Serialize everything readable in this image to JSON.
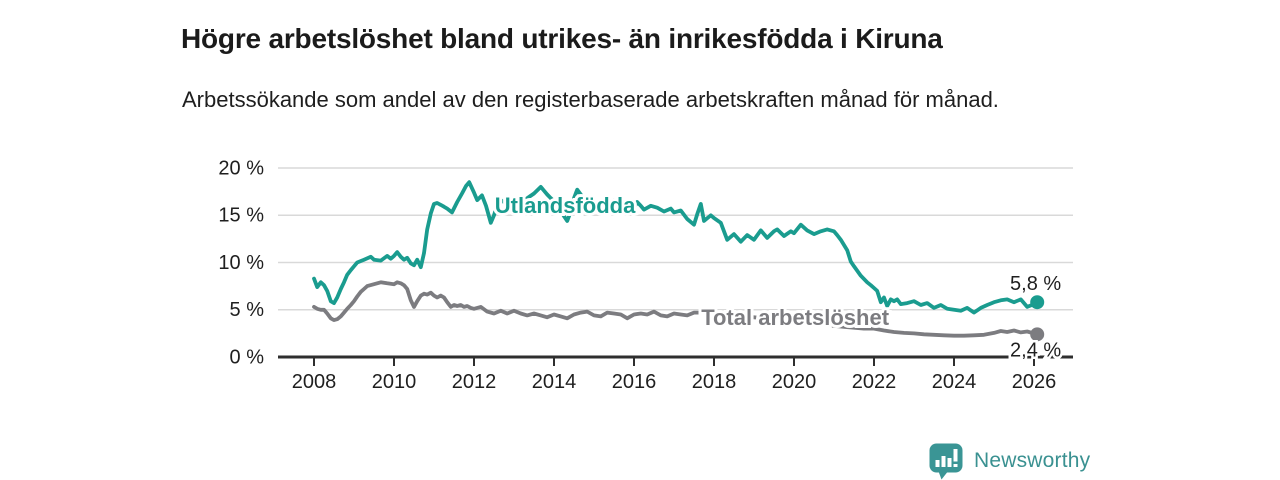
{
  "header": {
    "title": "Högre arbetslöshet bland utrikes- än inrikesfödda i Kiruna",
    "subtitle": "Arbetssökande som andel av den registerbaserade arbetskraften månad för månad."
  },
  "colors": {
    "accent_teal": "#1a9c8f",
    "line_gray": "#7c7c80",
    "axis": "#2e2e2e",
    "grid": "#d9d9d9",
    "tick_text": "#1f1f1f",
    "halo": "#ffffff",
    "logo_teal": "#3a9595",
    "logo_text": "#3a9191"
  },
  "chart_data": {
    "type": "line",
    "title": "Högre arbetslöshet bland utrikes- än inrikesfödda i Kiruna",
    "xlabel": "",
    "ylabel": "",
    "xlim": [
      2007.1,
      2026.975
    ],
    "ylim": [
      0,
      20
    ],
    "grid": true,
    "legend_position": "inline-labels",
    "x_ticks": [
      {
        "v": 2008,
        "label": "2008"
      },
      {
        "v": 2010,
        "label": "2010"
      },
      {
        "v": 2012,
        "label": "2012"
      },
      {
        "v": 2014,
        "label": "2014"
      },
      {
        "v": 2016,
        "label": "2016"
      },
      {
        "v": 2018,
        "label": "2018"
      },
      {
        "v": 2020,
        "label": "2020"
      },
      {
        "v": 2022,
        "label": "2022"
      },
      {
        "v": 2024,
        "label": "2024"
      },
      {
        "v": 2026,
        "label": "2026"
      }
    ],
    "y_ticks": [
      {
        "v": 0,
        "label": "0 %"
      },
      {
        "v": 5,
        "label": "5 %"
      },
      {
        "v": 10,
        "label": "10 %"
      },
      {
        "v": 15,
        "label": "15 %"
      },
      {
        "v": 20,
        "label": "20 %"
      }
    ],
    "series": [
      {
        "name": "Utlandsfödda",
        "slug": "utlandsfodda",
        "color": "#1a9c8f",
        "end_value_label": "5,8 %",
        "end_label_position": "above",
        "name_anchor": {
          "x": 2012.52,
          "y": 16.0
        },
        "points": [
          [
            2008.0,
            8.3
          ],
          [
            2008.08,
            7.4
          ],
          [
            2008.17,
            7.9
          ],
          [
            2008.25,
            7.6
          ],
          [
            2008.33,
            7.0
          ],
          [
            2008.42,
            5.9
          ],
          [
            2008.5,
            5.7
          ],
          [
            2008.58,
            6.3
          ],
          [
            2008.67,
            7.2
          ],
          [
            2008.75,
            7.9
          ],
          [
            2008.83,
            8.7
          ],
          [
            2008.92,
            9.2
          ],
          [
            2009.0,
            9.6
          ],
          [
            2009.08,
            10.0
          ],
          [
            2009.25,
            10.3
          ],
          [
            2009.42,
            10.6
          ],
          [
            2009.5,
            10.3
          ],
          [
            2009.67,
            10.2
          ],
          [
            2009.83,
            10.7
          ],
          [
            2009.92,
            10.4
          ],
          [
            2010.0,
            10.7
          ],
          [
            2010.08,
            11.1
          ],
          [
            2010.17,
            10.6
          ],
          [
            2010.25,
            10.3
          ],
          [
            2010.33,
            10.5
          ],
          [
            2010.42,
            9.9
          ],
          [
            2010.5,
            9.7
          ],
          [
            2010.58,
            10.3
          ],
          [
            2010.67,
            9.5
          ],
          [
            2010.75,
            11.0
          ],
          [
            2010.83,
            13.5
          ],
          [
            2010.92,
            15.2
          ],
          [
            2011.0,
            16.2
          ],
          [
            2011.08,
            16.3
          ],
          [
            2011.17,
            16.1
          ],
          [
            2011.25,
            15.9
          ],
          [
            2011.33,
            15.7
          ],
          [
            2011.45,
            15.3
          ],
          [
            2011.58,
            16.4
          ],
          [
            2011.7,
            17.3
          ],
          [
            2011.8,
            18.1
          ],
          [
            2011.88,
            18.5
          ],
          [
            2012.0,
            17.4
          ],
          [
            2012.08,
            16.6
          ],
          [
            2012.2,
            17.1
          ],
          [
            2012.3,
            16.0
          ],
          [
            2012.42,
            14.2
          ],
          [
            2012.5,
            15.0
          ],
          [
            2012.58,
            16.1
          ],
          [
            2012.67,
            16.6
          ],
          [
            2012.75,
            16.4
          ],
          [
            2012.83,
            16.8
          ],
          [
            2012.92,
            16.5
          ],
          [
            2013.0,
            16.7
          ],
          [
            2013.17,
            16.4
          ],
          [
            2013.33,
            16.8
          ],
          [
            2013.5,
            17.3
          ],
          [
            2013.67,
            18.0
          ],
          [
            2013.75,
            17.6
          ],
          [
            2013.83,
            17.2
          ],
          [
            2013.92,
            16.8
          ],
          [
            2014.0,
            16.5
          ],
          [
            2014.08,
            16.1
          ],
          [
            2014.17,
            15.5
          ],
          [
            2014.25,
            14.9
          ],
          [
            2014.33,
            14.4
          ],
          [
            2014.42,
            15.4
          ],
          [
            2014.5,
            16.8
          ],
          [
            2014.58,
            17.7
          ],
          [
            2014.67,
            17.2
          ],
          [
            2014.75,
            16.6
          ],
          [
            2014.83,
            16.2
          ],
          [
            2014.92,
            16.5
          ],
          [
            2015.0,
            16.1
          ],
          [
            2015.17,
            16.4
          ],
          [
            2015.33,
            16.0
          ],
          [
            2015.5,
            16.6
          ],
          [
            2015.67,
            16.2
          ],
          [
            2015.83,
            15.7
          ],
          [
            2015.92,
            16.1
          ],
          [
            2016.0,
            15.8
          ],
          [
            2016.08,
            16.4
          ],
          [
            2016.17,
            16.0
          ],
          [
            2016.25,
            15.6
          ],
          [
            2016.42,
            16.0
          ],
          [
            2016.58,
            15.8
          ],
          [
            2016.75,
            15.4
          ],
          [
            2016.92,
            15.7
          ],
          [
            2017.0,
            15.3
          ],
          [
            2017.17,
            15.5
          ],
          [
            2017.33,
            14.6
          ],
          [
            2017.5,
            14.0
          ],
          [
            2017.58,
            15.1
          ],
          [
            2017.67,
            16.2
          ],
          [
            2017.75,
            14.4
          ],
          [
            2017.92,
            15.0
          ],
          [
            2018.0,
            14.7
          ],
          [
            2018.17,
            14.2
          ],
          [
            2018.33,
            12.4
          ],
          [
            2018.5,
            13.0
          ],
          [
            2018.67,
            12.2
          ],
          [
            2018.83,
            12.9
          ],
          [
            2019.0,
            12.4
          ],
          [
            2019.17,
            13.4
          ],
          [
            2019.33,
            12.6
          ],
          [
            2019.5,
            13.3
          ],
          [
            2019.58,
            13.5
          ],
          [
            2019.75,
            12.8
          ],
          [
            2019.92,
            13.3
          ],
          [
            2020.0,
            13.1
          ],
          [
            2020.17,
            14.0
          ],
          [
            2020.33,
            13.4
          ],
          [
            2020.5,
            13.0
          ],
          [
            2020.67,
            13.3
          ],
          [
            2020.83,
            13.5
          ],
          [
            2021.0,
            13.3
          ],
          [
            2021.08,
            12.9
          ],
          [
            2021.17,
            12.4
          ],
          [
            2021.33,
            11.3
          ],
          [
            2021.42,
            10.1
          ],
          [
            2021.5,
            9.6
          ],
          [
            2021.67,
            8.6
          ],
          [
            2021.83,
            7.9
          ],
          [
            2021.92,
            7.6
          ],
          [
            2022.0,
            7.3
          ],
          [
            2022.08,
            7.0
          ],
          [
            2022.17,
            5.8
          ],
          [
            2022.25,
            6.3
          ],
          [
            2022.33,
            5.4
          ],
          [
            2022.42,
            6.1
          ],
          [
            2022.5,
            5.9
          ],
          [
            2022.58,
            6.1
          ],
          [
            2022.67,
            5.6
          ],
          [
            2022.83,
            5.7
          ],
          [
            2023.0,
            5.9
          ],
          [
            2023.17,
            5.5
          ],
          [
            2023.33,
            5.7
          ],
          [
            2023.5,
            5.2
          ],
          [
            2023.67,
            5.5
          ],
          [
            2023.83,
            5.1
          ],
          [
            2024.0,
            5.0
          ],
          [
            2024.17,
            4.9
          ],
          [
            2024.33,
            5.2
          ],
          [
            2024.5,
            4.7
          ],
          [
            2024.67,
            5.2
          ],
          [
            2024.83,
            5.5
          ],
          [
            2025.0,
            5.8
          ],
          [
            2025.17,
            6.0
          ],
          [
            2025.33,
            6.1
          ],
          [
            2025.5,
            5.8
          ],
          [
            2025.67,
            6.1
          ],
          [
            2025.83,
            5.3
          ],
          [
            2026.0,
            5.6
          ],
          [
            2026.08,
            5.8
          ]
        ]
      },
      {
        "name": "Total arbetslöshet",
        "slug": "total-arbetsloshet",
        "color": "#7c7c80",
        "end_value_label": "2,4 %",
        "end_label_position": "below",
        "name_anchor": {
          "x": 2017.68,
          "y": 4.15
        },
        "points": [
          [
            2008.0,
            5.3
          ],
          [
            2008.08,
            5.1
          ],
          [
            2008.17,
            5.0
          ],
          [
            2008.25,
            5.0
          ],
          [
            2008.33,
            4.6
          ],
          [
            2008.42,
            4.1
          ],
          [
            2008.5,
            3.9
          ],
          [
            2008.58,
            4.0
          ],
          [
            2008.67,
            4.3
          ],
          [
            2008.75,
            4.7
          ],
          [
            2008.83,
            5.1
          ],
          [
            2008.92,
            5.5
          ],
          [
            2009.0,
            5.9
          ],
          [
            2009.08,
            6.4
          ],
          [
            2009.17,
            6.9
          ],
          [
            2009.25,
            7.2
          ],
          [
            2009.33,
            7.5
          ],
          [
            2009.5,
            7.7
          ],
          [
            2009.67,
            7.9
          ],
          [
            2009.83,
            7.8
          ],
          [
            2010.0,
            7.7
          ],
          [
            2010.08,
            7.9
          ],
          [
            2010.17,
            7.8
          ],
          [
            2010.25,
            7.6
          ],
          [
            2010.33,
            7.2
          ],
          [
            2010.42,
            6.0
          ],
          [
            2010.5,
            5.3
          ],
          [
            2010.58,
            5.9
          ],
          [
            2010.67,
            6.5
          ],
          [
            2010.75,
            6.7
          ],
          [
            2010.83,
            6.6
          ],
          [
            2010.92,
            6.8
          ],
          [
            2011.0,
            6.5
          ],
          [
            2011.08,
            6.3
          ],
          [
            2011.17,
            6.5
          ],
          [
            2011.25,
            6.3
          ],
          [
            2011.33,
            5.8
          ],
          [
            2011.42,
            5.3
          ],
          [
            2011.5,
            5.5
          ],
          [
            2011.58,
            5.4
          ],
          [
            2011.67,
            5.5
          ],
          [
            2011.75,
            5.3
          ],
          [
            2011.83,
            5.4
          ],
          [
            2011.92,
            5.2
          ],
          [
            2012.0,
            5.1
          ],
          [
            2012.17,
            5.3
          ],
          [
            2012.33,
            4.8
          ],
          [
            2012.5,
            4.6
          ],
          [
            2012.67,
            4.9
          ],
          [
            2012.83,
            4.6
          ],
          [
            2013.0,
            4.9
          ],
          [
            2013.17,
            4.6
          ],
          [
            2013.33,
            4.4
          ],
          [
            2013.5,
            4.6
          ],
          [
            2013.67,
            4.4
          ],
          [
            2013.83,
            4.2
          ],
          [
            2014.0,
            4.5
          ],
          [
            2014.17,
            4.3
          ],
          [
            2014.33,
            4.1
          ],
          [
            2014.5,
            4.5
          ],
          [
            2014.67,
            4.7
          ],
          [
            2014.83,
            4.8
          ],
          [
            2015.0,
            4.4
          ],
          [
            2015.17,
            4.3
          ],
          [
            2015.33,
            4.7
          ],
          [
            2015.5,
            4.6
          ],
          [
            2015.67,
            4.5
          ],
          [
            2015.83,
            4.1
          ],
          [
            2016.0,
            4.5
          ],
          [
            2016.17,
            4.6
          ],
          [
            2016.33,
            4.5
          ],
          [
            2016.5,
            4.8
          ],
          [
            2016.67,
            4.4
          ],
          [
            2016.83,
            4.3
          ],
          [
            2017.0,
            4.6
          ],
          [
            2017.17,
            4.5
          ],
          [
            2017.33,
            4.4
          ],
          [
            2017.5,
            4.7
          ],
          [
            2017.67,
            4.7
          ],
          [
            2017.83,
            4.6
          ],
          [
            2018.0,
            4.5
          ],
          [
            2018.25,
            4.4
          ],
          [
            2018.5,
            4.4
          ],
          [
            2018.75,
            4.3
          ],
          [
            2019.0,
            4.2
          ],
          [
            2019.25,
            4.1
          ],
          [
            2019.5,
            4.0
          ],
          [
            2019.75,
            3.9
          ],
          [
            2020.0,
            3.8
          ],
          [
            2020.25,
            3.6
          ],
          [
            2020.5,
            3.5
          ],
          [
            2020.75,
            3.4
          ],
          [
            2021.0,
            3.3
          ],
          [
            2021.25,
            3.2
          ],
          [
            2021.5,
            3.1
          ],
          [
            2021.75,
            3.0
          ],
          [
            2022.0,
            3.0
          ],
          [
            2022.25,
            2.8
          ],
          [
            2022.5,
            2.65
          ],
          [
            2022.75,
            2.55
          ],
          [
            2023.0,
            2.5
          ],
          [
            2023.25,
            2.4
          ],
          [
            2023.5,
            2.35
          ],
          [
            2023.75,
            2.3
          ],
          [
            2024.0,
            2.25
          ],
          [
            2024.25,
            2.25
          ],
          [
            2024.5,
            2.3
          ],
          [
            2024.75,
            2.35
          ],
          [
            2025.0,
            2.55
          ],
          [
            2025.17,
            2.75
          ],
          [
            2025.33,
            2.65
          ],
          [
            2025.5,
            2.8
          ],
          [
            2025.67,
            2.6
          ],
          [
            2025.83,
            2.7
          ],
          [
            2026.0,
            2.5
          ],
          [
            2026.08,
            2.4
          ]
        ]
      }
    ]
  },
  "footer": {
    "brand": "Newsworthy",
    "icon": "newsworthy-bars-speech-bubble-icon"
  }
}
